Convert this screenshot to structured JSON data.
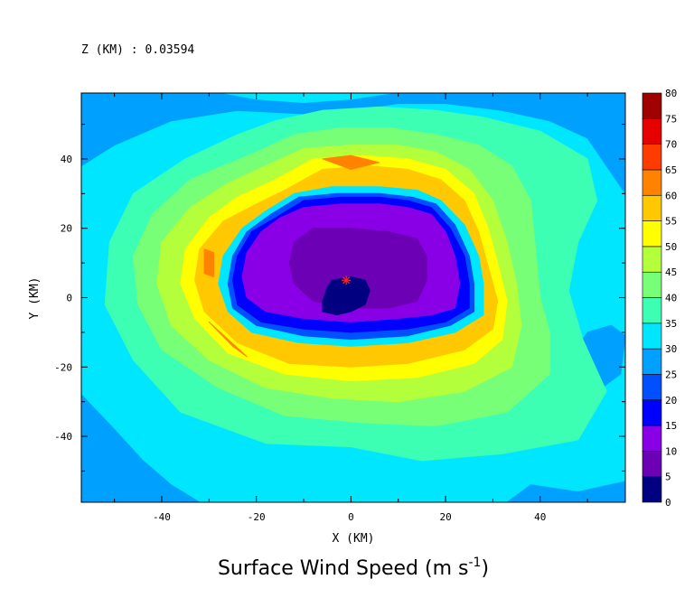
{
  "header": {
    "level_label": "Z (KM) : 0.03594"
  },
  "chart_data": {
    "type": "heatmap",
    "title": "Surface Wind Speed (m s",
    "title_superscript": "-1",
    "title_close": ")",
    "xlabel": "X (KM)",
    "ylabel": "Y (KM)",
    "xlim": [
      -57,
      58
    ],
    "ylim": [
      -59,
      59
    ],
    "xticks": [
      -40,
      -20,
      0,
      20,
      40
    ],
    "yticks": [
      -40,
      -20,
      0,
      20,
      40
    ],
    "grid": false,
    "legend": "right colorbar",
    "colorbar": {
      "levels": [
        0,
        5,
        10,
        15,
        20,
        25,
        30,
        35,
        40,
        45,
        50,
        55,
        60,
        65,
        70,
        75,
        80
      ],
      "colors": [
        "#000080",
        "#6b00b4",
        "#8a00e6",
        "#0000ff",
        "#0050ff",
        "#00a0ff",
        "#00e6ff",
        "#3cffb4",
        "#78ff78",
        "#b4ff3c",
        "#ffff00",
        "#ffc800",
        "#ff8200",
        "#ff3c00",
        "#e60000",
        "#a00000"
      ]
    },
    "storm_center": {
      "x": -1,
      "y": 5
    },
    "field_contours": [
      {
        "value": 27.5,
        "points": [
          [
            -57,
            59
          ],
          [
            -28,
            59
          ],
          [
            -20,
            57
          ],
          [
            -10,
            56
          ],
          [
            0,
            57
          ],
          [
            10,
            59
          ],
          [
            58,
            59
          ],
          [
            58,
            30
          ],
          [
            54,
            38
          ],
          [
            50,
            46
          ],
          [
            42,
            51
          ],
          [
            32,
            54
          ],
          [
            20,
            56
          ],
          [
            10,
            56
          ],
          [
            0,
            54
          ],
          [
            -10,
            53
          ],
          [
            -24,
            54
          ],
          [
            -38,
            51
          ],
          [
            -50,
            44
          ],
          [
            -57,
            38
          ]
        ]
      },
      {
        "value": 27.5,
        "points": [
          [
            -57,
            -28
          ],
          [
            -50,
            -38
          ],
          [
            -44,
            -47
          ],
          [
            -38,
            -54
          ],
          [
            -32,
            -59
          ],
          [
            -57,
            -59
          ]
        ]
      },
      {
        "value": 27.5,
        "points": [
          [
            33,
            -59
          ],
          [
            38,
            -54
          ],
          [
            48,
            -56
          ],
          [
            58,
            -53
          ],
          [
            58,
            -59
          ]
        ]
      },
      {
        "value": 27.5,
        "points": [
          [
            46,
            -18
          ],
          [
            50,
            -10
          ],
          [
            55,
            -8
          ],
          [
            58,
            -11
          ],
          [
            57,
            -22
          ],
          [
            52,
            -27
          ],
          [
            46,
            -25
          ]
        ]
      },
      {
        "value": 37.5,
        "points": [
          [
            -24,
            47
          ],
          [
            -16,
            51
          ],
          [
            -6,
            54
          ],
          [
            6,
            55
          ],
          [
            18,
            54
          ],
          [
            28,
            52
          ],
          [
            40,
            48
          ],
          [
            50,
            40
          ],
          [
            52,
            28
          ],
          [
            48,
            16
          ],
          [
            46,
            2
          ],
          [
            49,
            -12
          ],
          [
            54,
            -27
          ],
          [
            48,
            -41
          ],
          [
            32,
            -45
          ],
          [
            15,
            -47
          ],
          [
            0,
            -43
          ],
          [
            -18,
            -42
          ],
          [
            -36,
            -33
          ],
          [
            -46,
            -18
          ],
          [
            -52,
            -2
          ],
          [
            -51,
            16
          ],
          [
            -46,
            30
          ],
          [
            -35,
            40
          ]
        ]
      },
      {
        "value": 42.5,
        "points": [
          [
            -20,
            42
          ],
          [
            -12,
            47
          ],
          [
            -2,
            49
          ],
          [
            8,
            49
          ],
          [
            18,
            47
          ],
          [
            27,
            44
          ],
          [
            34,
            38
          ],
          [
            38,
            28
          ],
          [
            39,
            14
          ],
          [
            40,
            0
          ],
          [
            42,
            -10
          ],
          [
            42,
            -22
          ],
          [
            33,
            -33
          ],
          [
            18,
            -37
          ],
          [
            2,
            -36
          ],
          [
            -14,
            -34
          ],
          [
            -28,
            -26
          ],
          [
            -40,
            -15
          ],
          [
            -45,
            -2
          ],
          [
            -46,
            12
          ],
          [
            -42,
            24
          ],
          [
            -34,
            34
          ]
        ]
      },
      {
        "value": 47.5,
        "points": [
          [
            -18,
            38
          ],
          [
            -10,
            43
          ],
          [
            0,
            44
          ],
          [
            10,
            44
          ],
          [
            18,
            42
          ],
          [
            25,
            37
          ],
          [
            30,
            28
          ],
          [
            33,
            16
          ],
          [
            35,
            4
          ],
          [
            36,
            -8
          ],
          [
            34,
            -20
          ],
          [
            24,
            -27
          ],
          [
            10,
            -30
          ],
          [
            -4,
            -29
          ],
          [
            -18,
            -26
          ],
          [
            -30,
            -18
          ],
          [
            -38,
            -8
          ],
          [
            -41,
            4
          ],
          [
            -40,
            16
          ],
          [
            -34,
            26
          ],
          [
            -26,
            33
          ]
        ]
      },
      {
        "value": 52.5,
        "points": [
          [
            -16,
            34
          ],
          [
            -8,
            40
          ],
          [
            2,
            41
          ],
          [
            12,
            40
          ],
          [
            20,
            37
          ],
          [
            26,
            30
          ],
          [
            29,
            20
          ],
          [
            31,
            10
          ],
          [
            33,
            -1
          ],
          [
            32,
            -12
          ],
          [
            26,
            -19
          ],
          [
            14,
            -23
          ],
          [
            0,
            -24
          ],
          [
            -14,
            -22
          ],
          [
            -26,
            -16
          ],
          [
            -33,
            -6
          ],
          [
            -36,
            4
          ],
          [
            -35,
            14
          ],
          [
            -30,
            23
          ],
          [
            -24,
            29
          ]
        ]
      },
      {
        "value": 57.5,
        "points": [
          [
            -14,
            31
          ],
          [
            -6,
            37
          ],
          [
            4,
            38
          ],
          [
            12,
            37
          ],
          [
            19,
            34
          ],
          [
            24,
            28
          ],
          [
            27,
            19
          ],
          [
            29,
            9
          ],
          [
            31,
            -1
          ],
          [
            30,
            -9
          ],
          [
            24,
            -15
          ],
          [
            12,
            -19
          ],
          [
            0,
            -20
          ],
          [
            -13,
            -19
          ],
          [
            -24,
            -13
          ],
          [
            -31,
            -4
          ],
          [
            -33,
            5
          ],
          [
            -32,
            14
          ],
          [
            -27,
            22
          ],
          [
            -20,
            27
          ]
        ]
      },
      {
        "value": 62.5,
        "points": [
          [
            -6,
            40
          ],
          [
            0,
            41
          ],
          [
            6,
            39
          ],
          [
            0,
            37
          ]
        ]
      },
      {
        "value": 62.5,
        "points": [
          [
            -31,
            14
          ],
          [
            -29,
            13
          ],
          [
            -29,
            6
          ],
          [
            -31,
            7
          ]
        ]
      },
      {
        "value": 62.5,
        "points": [
          [
            -30,
            -7
          ],
          [
            -26,
            -12
          ],
          [
            -22,
            -17
          ],
          [
            -25,
            -14
          ]
        ]
      },
      {
        "value": 57.5,
        "points": [
          [
            -13,
            30
          ],
          [
            -4,
            33
          ],
          [
            6,
            33
          ],
          [
            14,
            32
          ],
          [
            20,
            29
          ],
          [
            25,
            22
          ],
          [
            28,
            12
          ],
          [
            29,
            3
          ],
          [
            29,
            -6
          ],
          [
            23,
            -12
          ],
          [
            12,
            -15
          ],
          [
            0,
            -16
          ],
          [
            -12,
            -15
          ],
          [
            -22,
            -11
          ],
          [
            -27,
            -4
          ],
          [
            -29,
            4
          ],
          [
            -28,
            13
          ],
          [
            -24,
            21
          ],
          [
            -19,
            26
          ]
        ]
      },
      {
        "value": 32.5,
        "points": [
          [
            -12,
            30
          ],
          [
            -4,
            32
          ],
          [
            6,
            32
          ],
          [
            14,
            31
          ],
          [
            19,
            28
          ],
          [
            24,
            21
          ],
          [
            27,
            12
          ],
          [
            28,
            4
          ],
          [
            28,
            -5
          ],
          [
            22,
            -10
          ],
          [
            12,
            -13
          ],
          [
            0,
            -14
          ],
          [
            -11,
            -13
          ],
          [
            -21,
            -10
          ],
          [
            -26,
            -4
          ],
          [
            -28,
            4
          ],
          [
            -27,
            12
          ],
          [
            -23,
            20
          ],
          [
            -18,
            25
          ]
        ]
      },
      {
        "value": 22.5,
        "points": [
          [
            -11,
            29
          ],
          [
            -3,
            30
          ],
          [
            6,
            30
          ],
          [
            13,
            29
          ],
          [
            18,
            27
          ],
          [
            22,
            21
          ],
          [
            25,
            12
          ],
          [
            26,
            4
          ],
          [
            26,
            -4
          ],
          [
            21,
            -8
          ],
          [
            12,
            -11
          ],
          [
            0,
            -12
          ],
          [
            -10,
            -11
          ],
          [
            -20,
            -8
          ],
          [
            -25,
            -3
          ],
          [
            -26,
            4
          ],
          [
            -25,
            12
          ],
          [
            -22,
            19
          ],
          [
            -17,
            24
          ]
        ]
      },
      {
        "value": 17.5,
        "points": [
          [
            -10,
            28
          ],
          [
            -2,
            29
          ],
          [
            6,
            29
          ],
          [
            12,
            28
          ],
          [
            17,
            26
          ],
          [
            21,
            20
          ],
          [
            24,
            12
          ],
          [
            25,
            4
          ],
          [
            25,
            -3
          ],
          [
            20,
            -7
          ],
          [
            12,
            -9
          ],
          [
            0,
            -10
          ],
          [
            -10,
            -9
          ],
          [
            -19,
            -7
          ],
          [
            -24,
            -2
          ],
          [
            -25,
            5
          ],
          [
            -24,
            12
          ],
          [
            -21,
            19
          ],
          [
            -16,
            23
          ]
        ]
      },
      {
        "value": 12.5,
        "points": [
          [
            -10,
            26
          ],
          [
            -2,
            27
          ],
          [
            6,
            27
          ],
          [
            12,
            26
          ],
          [
            17,
            24
          ],
          [
            20,
            19
          ],
          [
            22,
            12
          ],
          [
            23,
            4
          ],
          [
            22,
            -3
          ],
          [
            17,
            -5
          ],
          [
            10,
            -6
          ],
          [
            0,
            -7
          ],
          [
            -10,
            -6
          ],
          [
            -18,
            -4
          ],
          [
            -22,
            0
          ],
          [
            -23,
            6
          ],
          [
            -22,
            13
          ],
          [
            -19,
            19
          ],
          [
            -15,
            23
          ]
        ]
      },
      {
        "value": 7.5,
        "points": [
          [
            -8,
            20
          ],
          [
            0,
            20
          ],
          [
            8,
            19
          ],
          [
            14,
            17
          ],
          [
            16,
            12
          ],
          [
            16,
            5
          ],
          [
            14,
            -1
          ],
          [
            8,
            -3
          ],
          [
            0,
            -3
          ],
          [
            -8,
            -1
          ],
          [
            -12,
            4
          ],
          [
            -13,
            10
          ],
          [
            -12,
            16
          ]
        ]
      },
      {
        "value": 2.5,
        "points": [
          [
            -4,
            5
          ],
          [
            0,
            6
          ],
          [
            3,
            5
          ],
          [
            4,
            2
          ],
          [
            3,
            -2
          ],
          [
            0,
            -4
          ],
          [
            -3,
            -5
          ],
          [
            -6,
            -4
          ],
          [
            -6,
            -1
          ],
          [
            -5,
            3
          ]
        ]
      }
    ]
  }
}
